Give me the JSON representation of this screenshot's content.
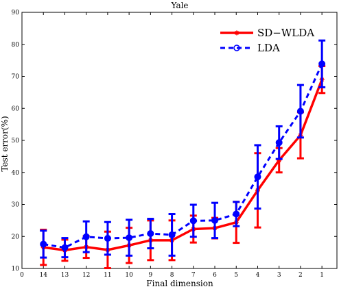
{
  "chart_data": {
    "type": "line",
    "title": "Yale",
    "xlabel": "Final dimension",
    "ylabel": "Test error(%)",
    "x_ticks": [
      "0",
      "14",
      "13",
      "12",
      "11",
      "10",
      "9",
      "8",
      "7",
      "6",
      "5",
      "4",
      "3",
      "2",
      "1"
    ],
    "y_ticks": [
      "10",
      "20",
      "30",
      "40",
      "50",
      "60",
      "70",
      "80",
      "90"
    ],
    "ylim": [
      10,
      90
    ],
    "x": [
      14,
      13,
      12,
      11,
      10,
      9,
      8,
      7,
      6,
      5,
      4,
      3,
      2,
      1
    ],
    "legend_position": "top-right",
    "series": [
      {
        "name": "SD−WLDA",
        "color": "#ff0000",
        "style": "solid",
        "marker": "star",
        "values": [
          16.6,
          15.7,
          16.7,
          15.8,
          17.2,
          18.8,
          18.8,
          22.3,
          22.6,
          24.4,
          34.4,
          43.8,
          51.6,
          69.0
        ],
        "err": [
          5.5,
          3.3,
          3.4,
          5.7,
          5.5,
          6.2,
          6.2,
          4.2,
          3.2,
          6.4,
          11.6,
          3.8,
          7.2,
          4.2
        ]
      },
      {
        "name": "LDA",
        "color": "#0000ff",
        "style": "dashed",
        "marker": "circle",
        "values": [
          17.6,
          16.5,
          19.9,
          19.4,
          19.6,
          20.9,
          20.5,
          24.9,
          25.0,
          27.0,
          38.6,
          49.3,
          59.1,
          73.9
        ],
        "err": [
          4.2,
          3.0,
          4.8,
          5.1,
          5.6,
          4.6,
          6.5,
          5.0,
          5.5,
          3.8,
          9.9,
          5.1,
          8.2,
          7.3
        ]
      }
    ]
  }
}
